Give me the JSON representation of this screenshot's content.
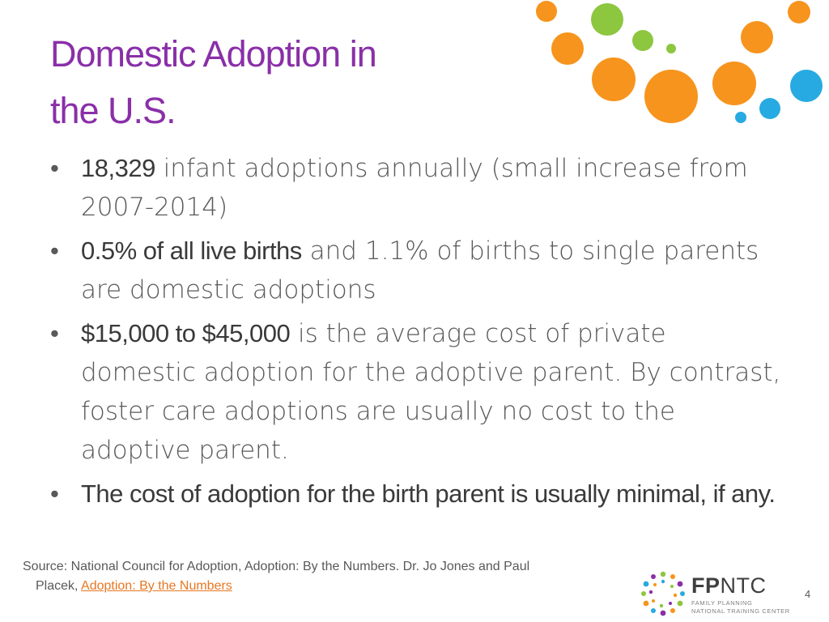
{
  "slide": {
    "title_line1": "Domestic Adoption in",
    "title_line2": "the U.S.",
    "bullets": [
      {
        "highlight": "18,329",
        "text": " infant adoptions annually (small increase from 2007-2014)"
      },
      {
        "highlight": "0.5% of all live births",
        "text": " and 1.1% of births to single parents are domestic adoptions"
      },
      {
        "highlight": "$15,000 to $45,000",
        "text": " is the average cost of private domestic adoption for the adoptive parent. By contrast, foster care adoptions are usually no cost to the adoptive parent."
      },
      {
        "highlight": "The cost of adoption for the birth parent is usually minimal, if any.",
        "text": ""
      }
    ],
    "bullet_glyph": "•",
    "source_line1": "Source: National Council for Adoption, Adoption: By the Numbers. Dr. Jo Jones and Paul",
    "source_line2_prefix": "Placek, ",
    "source_link": "Adoption: By the Numbers",
    "page_number": "4"
  },
  "logo": {
    "brand_bold": "FP",
    "brand_rest": "NTC",
    "sub_line1": "FAMILY PLANNING",
    "sub_line2": "NATIONAL TRAINING CENTER"
  },
  "colors": {
    "title": "#8a2fa8",
    "orange": "#f7941d",
    "green": "#8dc63f",
    "blue": "#27aae1",
    "link": "#e87722"
  },
  "icons": {
    "decoration": "circle-dots-cluster",
    "logo_mark": "ring-of-dots-icon"
  }
}
